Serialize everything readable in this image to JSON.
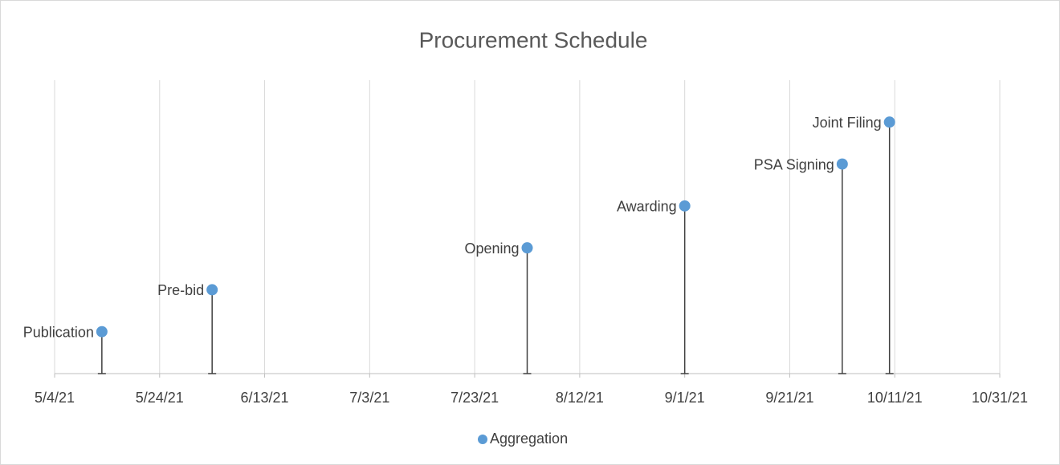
{
  "chart_data": {
    "type": "scatter",
    "title": "Procurement Schedule",
    "series": [
      {
        "name": "Aggregation",
        "color": "#5b9bd5",
        "x": [
          44329,
          44350,
          44410,
          44440,
          44470,
          44479
        ],
        "values": [
          1,
          2,
          3,
          4,
          5,
          6
        ],
        "labels": [
          "Publication",
          "Pre-bid",
          "Opening",
          "Awarding",
          "PSA Signing",
          "Joint Filing"
        ]
      }
    ],
    "drop_lines": true,
    "xlim": [
      44320,
      44500
    ],
    "xticks": [
      {
        "value": 44320,
        "label": "5/4/21"
      },
      {
        "value": 44340,
        "label": "5/24/21"
      },
      {
        "value": 44360,
        "label": "6/13/21"
      },
      {
        "value": 44380,
        "label": "7/3/21"
      },
      {
        "value": 44400,
        "label": "7/23/21"
      },
      {
        "value": 44420,
        "label": "8/12/21"
      },
      {
        "value": 44440,
        "label": "9/1/21"
      },
      {
        "value": 44460,
        "label": "9/21/21"
      },
      {
        "value": 44480,
        "label": "10/11/21"
      },
      {
        "value": 44500,
        "label": "10/31/21"
      }
    ],
    "ylim": [
      0,
      7
    ],
    "grid": true,
    "legend": "bottom"
  }
}
